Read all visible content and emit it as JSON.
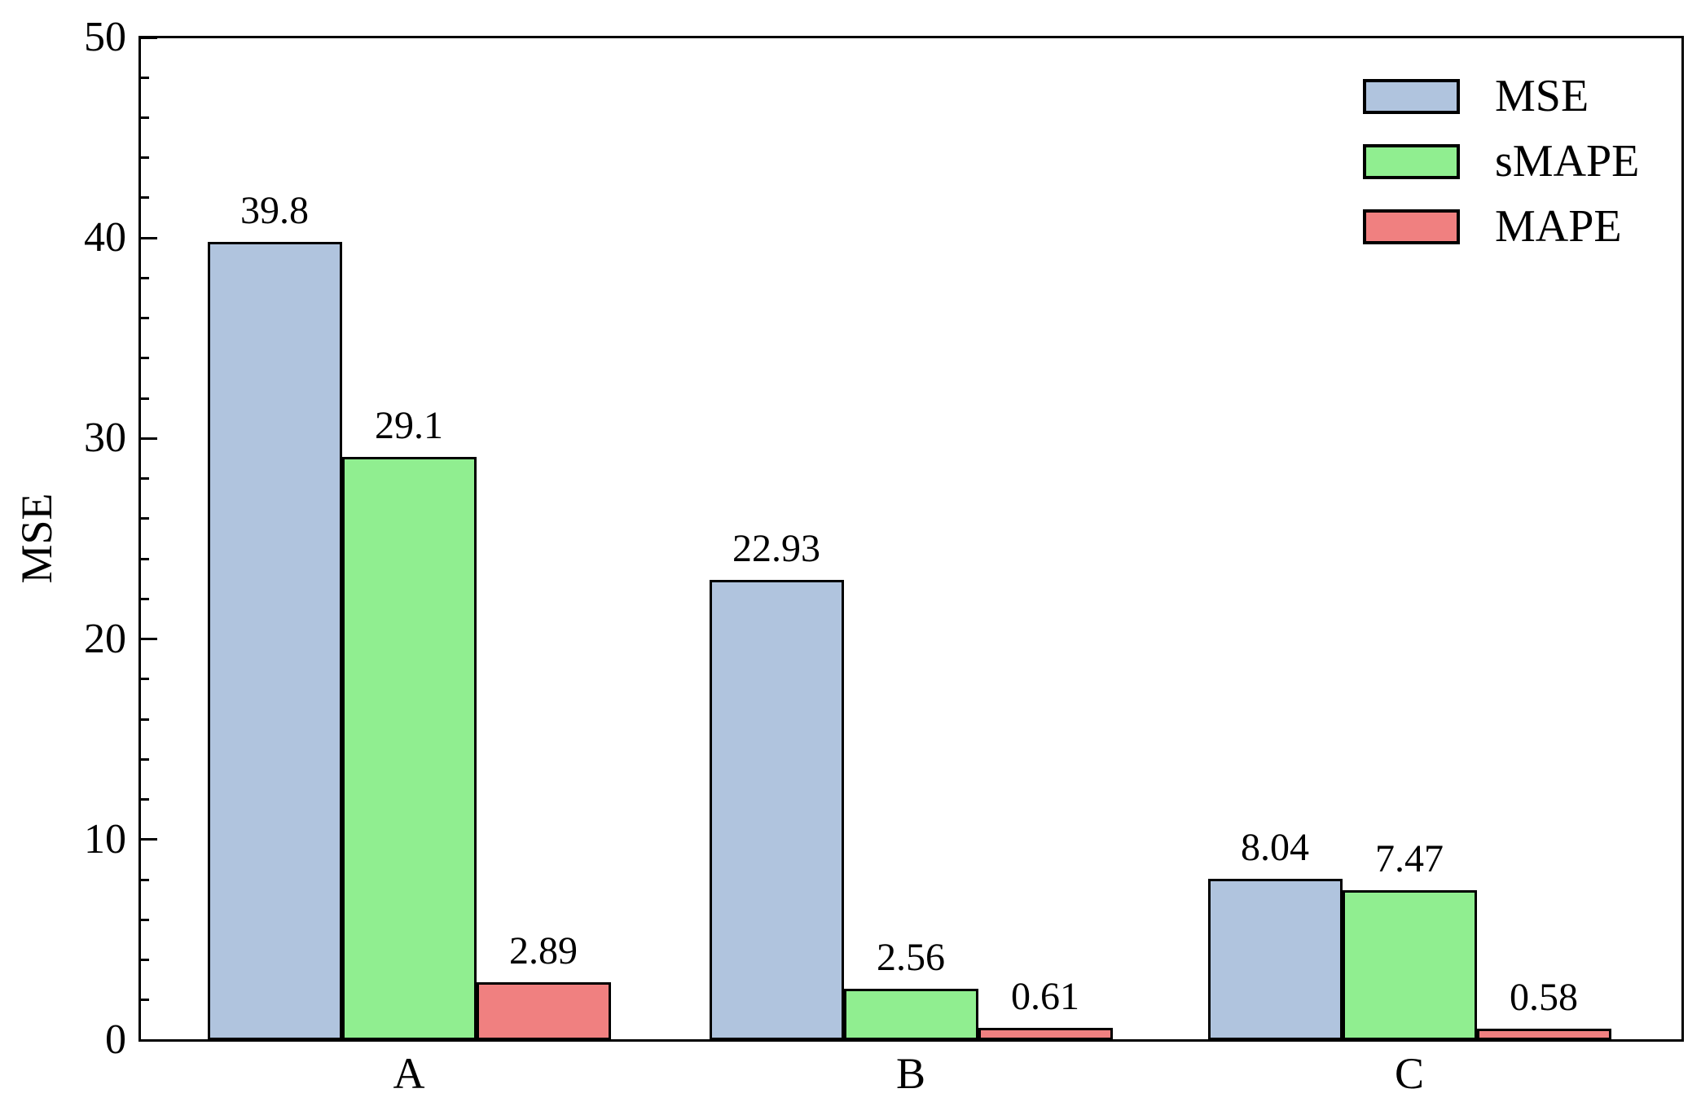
{
  "chart_data": {
    "type": "bar",
    "title": "",
    "categories": [
      "A",
      "B",
      "C"
    ],
    "series": [
      {
        "name": "MSE",
        "color": "#b0c4de",
        "values": [
          39.8,
          22.93,
          8.04
        ],
        "labels": [
          "39.8",
          "22.93",
          "8.04"
        ]
      },
      {
        "name": "sMAPE",
        "color": "#90ee90",
        "values": [
          29.1,
          2.56,
          7.47
        ],
        "labels": [
          "29.1",
          "2.56",
          "7.47"
        ]
      },
      {
        "name": "MAPE",
        "color": "#f08080",
        "values": [
          2.89,
          0.61,
          0.58
        ],
        "labels": [
          "2.89",
          "0.61",
          "0.58"
        ]
      }
    ],
    "xlabel": "",
    "ylabel": "MSE",
    "ylim": [
      0,
      50
    ],
    "yticks": [
      "0",
      "10",
      "20",
      "30",
      "40",
      "50"
    ],
    "ytick_step": 10,
    "minor_tick_step": 2,
    "grid": false,
    "legend_position": "top-right",
    "bar_edge_color": "#000000",
    "axis_color": "#000000",
    "background_color": "#ffffff"
  }
}
